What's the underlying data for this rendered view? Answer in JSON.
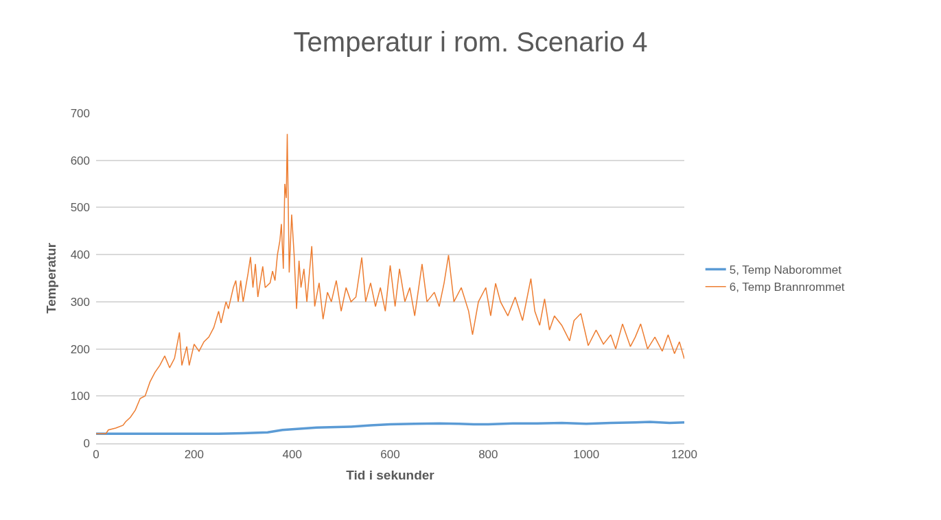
{
  "chart_data": {
    "type": "line",
    "title": "Temperatur i rom. Scenario 4",
    "xlabel": "Tid i sekunder",
    "ylabel": "Temperatur",
    "xlim": [
      0,
      1200
    ],
    "xticks": [
      0,
      200,
      400,
      600,
      800,
      1000,
      1200
    ],
    "ylim": [
      0,
      700
    ],
    "yticks": [
      0,
      100,
      200,
      300,
      400,
      500,
      600,
      700
    ],
    "grid": "y",
    "legend": "right",
    "marker": "none",
    "line_style": "solid",
    "series": [
      {
        "name": "5, Temp Naborommet",
        "color": "#5b9bd5",
        "x": [
          0,
          100,
          200,
          250,
          300,
          350,
          380,
          420,
          450,
          520,
          560,
          600,
          650,
          700,
          740,
          770,
          800,
          850,
          900,
          950,
          1000,
          1050,
          1100,
          1130,
          1170,
          1200
        ],
        "values": [
          20,
          20,
          20,
          20,
          21,
          23,
          28,
          31,
          33,
          35,
          38,
          40,
          41,
          42,
          41,
          40,
          40,
          42,
          42,
          43,
          41,
          43,
          44,
          45,
          43,
          44
        ]
      },
      {
        "name": "6, Temp Brannrommet",
        "color": "#ed7d31",
        "x": [
          0,
          20,
          25,
          40,
          55,
          60,
          70,
          80,
          90,
          100,
          110,
          120,
          130,
          140,
          150,
          160,
          170,
          175,
          185,
          190,
          200,
          210,
          220,
          230,
          240,
          250,
          255,
          265,
          270,
          280,
          285,
          290,
          295,
          300,
          310,
          315,
          320,
          325,
          330,
          340,
          345,
          355,
          360,
          365,
          370,
          375,
          378,
          382,
          385,
          388,
          390,
          394,
          399,
          404,
          409,
          414,
          418,
          424,
          430,
          440,
          446,
          455,
          463,
          472,
          480,
          490,
          500,
          510,
          520,
          530,
          542,
          550,
          560,
          570,
          580,
          590,
          600,
          610,
          619,
          630,
          640,
          650,
          665,
          675,
          690,
          700,
          710,
          719,
          730,
          745,
          760,
          768,
          780,
          795,
          805,
          815,
          825,
          840,
          855,
          870,
          887,
          895,
          905,
          915,
          925,
          935,
          950,
          966,
          975,
          989,
          1004,
          1020,
          1035,
          1050,
          1060,
          1074,
          1090,
          1100,
          1111,
          1125,
          1140,
          1155,
          1167,
          1180,
          1190,
          1200
        ],
        "values": [
          20,
          20,
          28,
          32,
          38,
          45,
          55,
          70,
          95,
          100,
          130,
          150,
          165,
          185,
          160,
          180,
          235,
          165,
          205,
          165,
          210,
          195,
          215,
          225,
          245,
          280,
          255,
          300,
          285,
          330,
          345,
          300,
          345,
          300,
          360,
          395,
          330,
          380,
          310,
          375,
          330,
          340,
          365,
          345,
          400,
          430,
          465,
          370,
          550,
          520,
          656,
          362,
          485,
          400,
          285,
          387,
          330,
          370,
          300,
          418,
          290,
          340,
          263,
          320,
          300,
          345,
          280,
          330,
          300,
          310,
          394,
          300,
          340,
          290,
          330,
          280,
          377,
          290,
          370,
          300,
          330,
          270,
          380,
          300,
          320,
          290,
          340,
          399,
          300,
          330,
          280,
          230,
          300,
          330,
          270,
          339,
          300,
          270,
          310,
          260,
          349,
          280,
          250,
          306,
          240,
          270,
          250,
          217,
          260,
          275,
          207,
          240,
          210,
          230,
          200,
          253,
          205,
          225,
          253,
          200,
          225,
          195,
          230,
          190,
          215,
          179
        ]
      }
    ]
  }
}
